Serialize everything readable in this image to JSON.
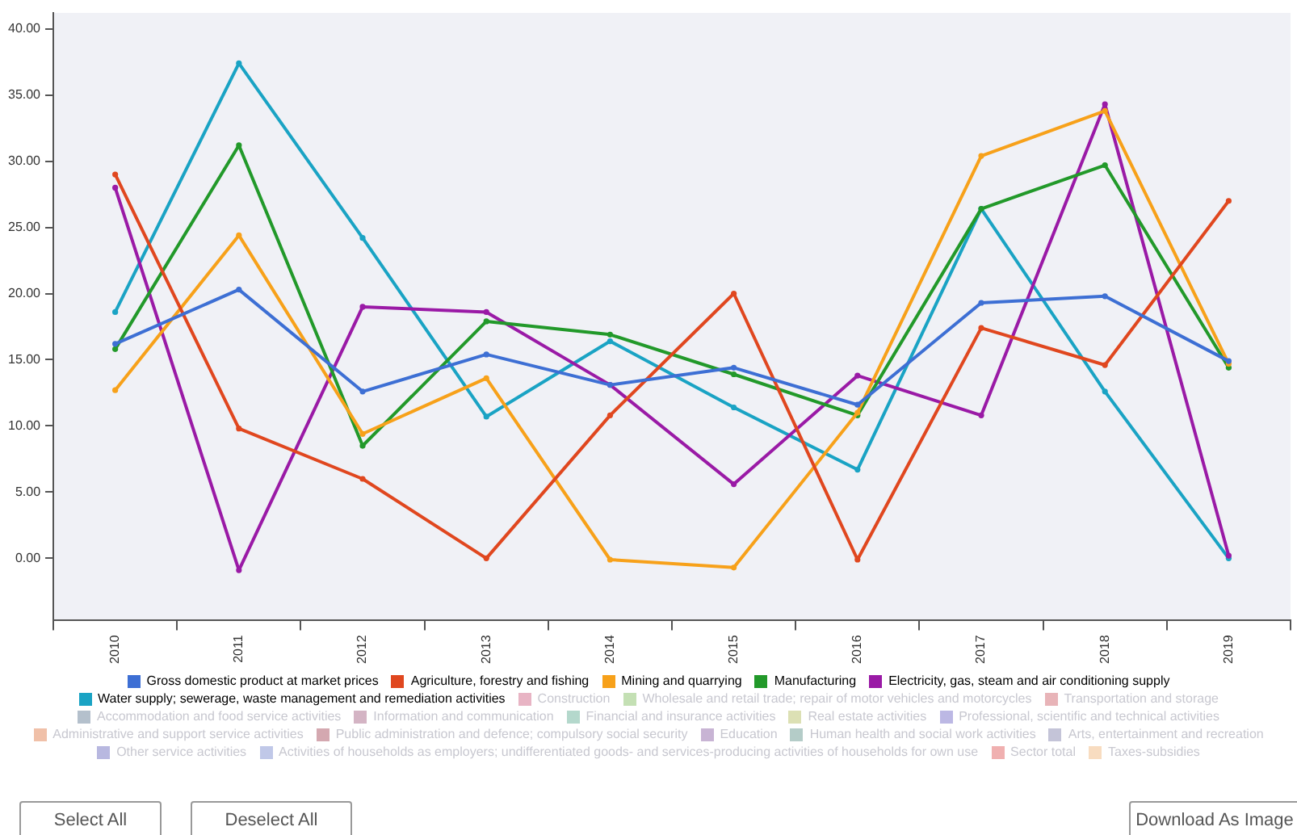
{
  "chart_data": {
    "type": "line",
    "categories": [
      "2010",
      "2011",
      "2012",
      "2013",
      "2014",
      "2015",
      "2016",
      "2017",
      "2018",
      "2019"
    ],
    "ylim": [
      -4.7,
      41.2
    ],
    "yticks": [
      {
        "value": 0,
        "label": "0.00"
      },
      {
        "value": 5,
        "label": "5.00"
      },
      {
        "value": 10,
        "label": "10.00"
      },
      {
        "value": 15,
        "label": "15.00"
      },
      {
        "value": 20,
        "label": "20.00"
      },
      {
        "value": 25,
        "label": "25.00"
      },
      {
        "value": 30,
        "label": "30.00"
      },
      {
        "value": 35,
        "label": "35.00"
      },
      {
        "value": 40,
        "label": "40.00"
      }
    ],
    "grid": false,
    "legend": "bottom",
    "marker": "circle",
    "line_style": "solid",
    "series": [
      {
        "name": "Gross domestic product at market prices",
        "color": "#3d6fd4",
        "values": [
          16.2,
          20.3,
          12.6,
          15.4,
          13.1,
          14.4,
          11.6,
          19.3,
          19.8,
          14.9
        ]
      },
      {
        "name": "Agriculture, forestry and fishing",
        "color": "#e0471f",
        "values": [
          29.0,
          9.8,
          6.0,
          0.0,
          10.8,
          20.0,
          -0.1,
          17.4,
          14.6,
          27.0
        ]
      },
      {
        "name": "Mining and quarrying",
        "color": "#f7a11a",
        "values": [
          12.7,
          24.4,
          9.4,
          13.6,
          -0.1,
          -0.7,
          11.0,
          30.4,
          33.8,
          14.7
        ]
      },
      {
        "name": "Manufacturing",
        "color": "#22992a",
        "values": [
          15.8,
          31.2,
          8.5,
          17.9,
          16.9,
          13.9,
          10.8,
          26.4,
          29.7,
          14.4
        ]
      },
      {
        "name": "Electricity, gas, steam and air conditioning supply",
        "color": "#9a1aa6",
        "values": [
          28.0,
          -0.9,
          19.0,
          18.6,
          13.1,
          5.6,
          13.8,
          10.8,
          34.3,
          0.2
        ]
      },
      {
        "name": "Water supply; sewerage, waste management and remediation activities",
        "color": "#1aa3c4",
        "values": [
          18.6,
          37.4,
          24.2,
          10.7,
          16.4,
          11.4,
          6.7,
          26.4,
          12.6,
          0.0
        ]
      },
      {
        "name": "Construction",
        "color": "#e8b4c4",
        "values": [
          null,
          null,
          null,
          null,
          null,
          null,
          null,
          null,
          null,
          null
        ]
      },
      {
        "name": "Wholesale and retail trade; repair of motor vehicles and motorcycles",
        "color": "#c4e0b4",
        "values": [
          null,
          null,
          null,
          null,
          null,
          null,
          null,
          null,
          null,
          null
        ]
      },
      {
        "name": "Transportation and storage",
        "color": "#e8b4b8",
        "values": [
          null,
          null,
          null,
          null,
          null,
          null,
          null,
          null,
          null,
          null
        ]
      },
      {
        "name": "Accommodation and food service activities",
        "color": "#b4c0cc",
        "values": [
          null,
          null,
          null,
          null,
          null,
          null,
          null,
          null,
          null,
          null
        ]
      },
      {
        "name": "Information and communication",
        "color": "#d4b4c4",
        "values": [
          null,
          null,
          null,
          null,
          null,
          null,
          null,
          null,
          null,
          null
        ]
      },
      {
        "name": "Financial and insurance activities",
        "color": "#b4d8cc",
        "values": [
          null,
          null,
          null,
          null,
          null,
          null,
          null,
          null,
          null,
          null
        ]
      },
      {
        "name": "Real estate activities",
        "color": "#dce0b4",
        "values": [
          null,
          null,
          null,
          null,
          null,
          null,
          null,
          null,
          null,
          null
        ]
      },
      {
        "name": "Professional, scientific and technical activities",
        "color": "#bcb8e4",
        "values": [
          null,
          null,
          null,
          null,
          null,
          null,
          null,
          null,
          null,
          null
        ]
      },
      {
        "name": "Administrative and support service activities",
        "color": "#f0c0a8",
        "values": [
          null,
          null,
          null,
          null,
          null,
          null,
          null,
          null,
          null,
          null
        ]
      },
      {
        "name": "Public administration and defence; compulsory social security",
        "color": "#d4a8b0",
        "values": [
          null,
          null,
          null,
          null,
          null,
          null,
          null,
          null,
          null,
          null
        ]
      },
      {
        "name": "Education",
        "color": "#c8b4d4",
        "values": [
          null,
          null,
          null,
          null,
          null,
          null,
          null,
          null,
          null,
          null
        ]
      },
      {
        "name": "Human health and social work activities",
        "color": "#b4ccc8",
        "values": [
          null,
          null,
          null,
          null,
          null,
          null,
          null,
          null,
          null,
          null
        ]
      },
      {
        "name": "Arts, entertainment and recreation",
        "color": "#c4c4d8",
        "values": [
          null,
          null,
          null,
          null,
          null,
          null,
          null,
          null,
          null,
          null
        ]
      },
      {
        "name": "Other service activities",
        "color": "#b8b8e0",
        "values": [
          null,
          null,
          null,
          null,
          null,
          null,
          null,
          null,
          null,
          null
        ]
      },
      {
        "name": "Activities of households as employers; undifferentiated goods- and services-producing activities of households for own use",
        "color": "#c0c8e8",
        "values": [
          null,
          null,
          null,
          null,
          null,
          null,
          null,
          null,
          null,
          null
        ]
      },
      {
        "name": "Sector total",
        "color": "#f0b0b0",
        "values": [
          null,
          null,
          null,
          null,
          null,
          null,
          null,
          null,
          null,
          null
        ]
      },
      {
        "name": "Taxes-subsidies",
        "color": "#f8dcc0",
        "values": [
          null,
          null,
          null,
          null,
          null,
          null,
          null,
          null,
          null,
          null
        ]
      }
    ],
    "annotations": [
      "Select All",
      "Deselect All",
      "Download As Image"
    ]
  }
}
